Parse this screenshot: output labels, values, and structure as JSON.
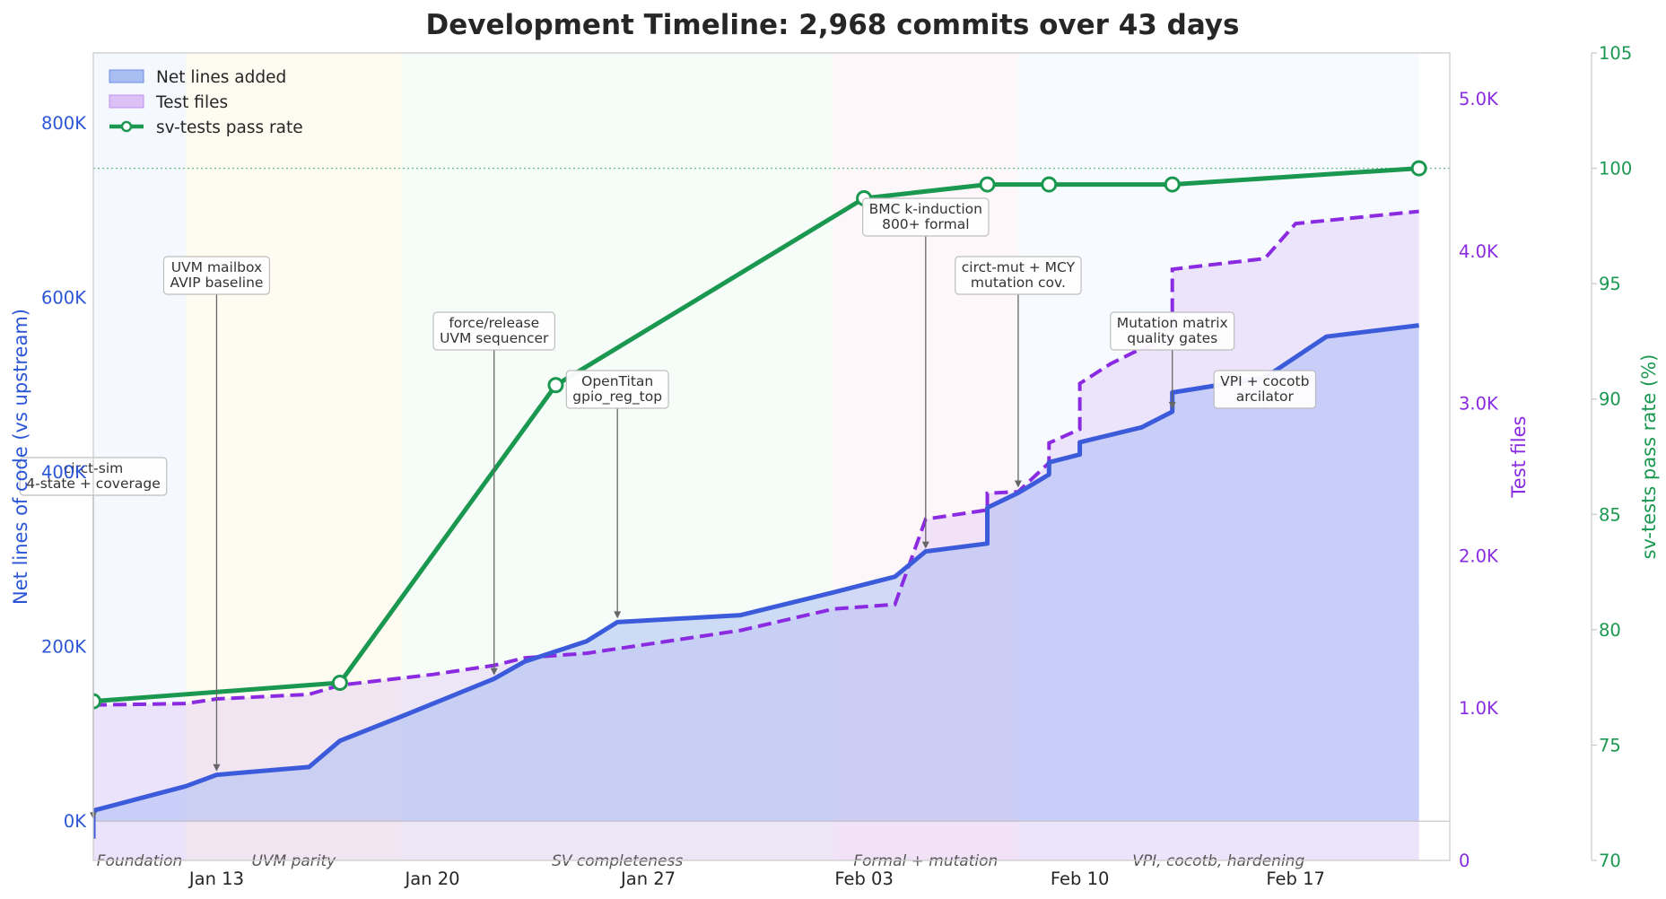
{
  "chart_data": {
    "type": "line",
    "title": "Development Timeline: 2,968 commits over 43 days",
    "x_ticks": [
      "Jan 13",
      "Jan 20",
      "Jan 27",
      "Feb 03",
      "Feb 10",
      "Feb 17"
    ],
    "xlim": [
      "Jan 09",
      "Feb 22"
    ],
    "axes": {
      "left": {
        "label": "Net lines of code (vs upstream)",
        "ylim": [
          -45000,
          880000
        ],
        "ticks": [
          0,
          200000,
          400000,
          600000,
          800000
        ],
        "tick_labels": [
          "0K",
          "200K",
          "400K",
          "600K",
          "800K"
        ],
        "color": "#2a55d6"
      },
      "right1": {
        "label": "Test files",
        "ylim": [
          0,
          5300
        ],
        "ticks": [
          0,
          1000,
          2000,
          3000,
          4000,
          5000
        ],
        "tick_labels": [
          "0",
          "1.0K",
          "2.0K",
          "3.0K",
          "4.0K",
          "5.0K"
        ],
        "color": "#8a2be2"
      },
      "right2": {
        "label": "sv-tests pass rate (%)",
        "ylim": [
          70,
          105
        ],
        "ticks": [
          70,
          75,
          80,
          85,
          90,
          95,
          100,
          105
        ],
        "tick_labels": [
          "70",
          "75",
          "80",
          "85",
          "90",
          "95",
          "100",
          "105"
        ],
        "color": "#1a9850"
      }
    },
    "series": [
      {
        "name": "Net lines added",
        "axis": "left",
        "style": "area+line",
        "color": "#3b5bdb",
        "points": [
          [
            "Jan 09",
            -20000
          ],
          [
            "Jan 09",
            12000
          ],
          [
            "Jan 12",
            40000
          ],
          [
            "Jan 13",
            53000
          ],
          [
            "Jan 16",
            62000
          ],
          [
            "Jan 17",
            92000
          ],
          [
            "Jan 19",
            120000
          ],
          [
            "Jan 22",
            163000
          ],
          [
            "Jan 23",
            183000
          ],
          [
            "Jan 25",
            206000
          ],
          [
            "Jan 26",
            228000
          ],
          [
            "Jan 30",
            236000
          ],
          [
            "Feb 02",
            262000
          ],
          [
            "Feb 04",
            280000
          ],
          [
            "Feb 05",
            309000
          ],
          [
            "Feb 07",
            318000
          ],
          [
            "Feb 07",
            359000
          ],
          [
            "Feb 08",
            376000
          ],
          [
            "Feb 09",
            397000
          ],
          [
            "Feb 09",
            411000
          ],
          [
            "Feb 10",
            420000
          ],
          [
            "Feb 10",
            434000
          ],
          [
            "Feb 12",
            451000
          ],
          [
            "Feb 13",
            469000
          ],
          [
            "Feb 13",
            491000
          ],
          [
            "Feb 16",
            508000
          ],
          [
            "Feb 18",
            555000
          ],
          [
            "Feb 21",
            568000
          ]
        ]
      },
      {
        "name": "Test files",
        "axis": "right1",
        "style": "dashed-area",
        "color": "#8a2be2",
        "points": [
          [
            "Jan 09",
            1020
          ],
          [
            "Jan 12",
            1030
          ],
          [
            "Jan 13",
            1060
          ],
          [
            "Jan 16",
            1090
          ],
          [
            "Jan 17",
            1150
          ],
          [
            "Jan 20",
            1220
          ],
          [
            "Jan 22",
            1280
          ],
          [
            "Jan 23",
            1330
          ],
          [
            "Jan 25",
            1360
          ],
          [
            "Jan 26",
            1390
          ],
          [
            "Jan 30",
            1510
          ],
          [
            "Feb 02",
            1650
          ],
          [
            "Feb 04",
            1680
          ],
          [
            "Feb 05",
            2240
          ],
          [
            "Feb 07",
            2300
          ],
          [
            "Feb 07",
            2410
          ],
          [
            "Feb 08",
            2420
          ],
          [
            "Feb 09",
            2610
          ],
          [
            "Feb 09",
            2740
          ],
          [
            "Feb 10",
            2830
          ],
          [
            "Feb 10",
            3130
          ],
          [
            "Feb 11",
            3260
          ],
          [
            "Feb 12",
            3360
          ],
          [
            "Feb 13",
            3420
          ],
          [
            "Feb 13",
            3880
          ],
          [
            "Feb 16",
            3950
          ],
          [
            "Feb 17",
            4180
          ],
          [
            "Feb 21",
            4260
          ]
        ]
      },
      {
        "name": "sv-tests pass rate",
        "axis": "right2",
        "style": "line+markers",
        "color": "#1a9850",
        "points": [
          [
            "Jan 09",
            76.9
          ],
          [
            "Jan 17",
            77.7
          ],
          [
            "Jan 24",
            90.6
          ],
          [
            "Feb 03",
            98.7
          ],
          [
            "Feb 07",
            99.3
          ],
          [
            "Feb 09",
            99.3
          ],
          [
            "Feb 13",
            99.3
          ],
          [
            "Feb 21",
            100.0
          ]
        ]
      }
    ],
    "reference_line": {
      "axis": "right2",
      "value": 100
    },
    "phases": [
      {
        "label": "Foundation",
        "start": "Jan 09",
        "end": "Jan 12",
        "color": "#dce6fb"
      },
      {
        "label": "UVM parity",
        "start": "Jan 12",
        "end": "Jan 19",
        "color": "#fdf0c8"
      },
      {
        "label": "SV completeness",
        "start": "Jan 19",
        "end": "Feb 02",
        "color": "#e0f5e6"
      },
      {
        "label": "Formal + mutation",
        "start": "Feb 02",
        "end": "Feb 08",
        "color": "#fde3ec"
      },
      {
        "label": "VPI, cocotb, hardening",
        "start": "Feb 08",
        "end": "Feb 21",
        "color": "#e3ecfb"
      }
    ],
    "annotations": [
      {
        "lines": [
          "circt-sim",
          "4-state + coverage"
        ],
        "date": "Jan 09",
        "target_value": 0
      },
      {
        "lines": [
          "UVM mailbox",
          "AVIP baseline"
        ],
        "date": "Jan 13",
        "target_value": 55000
      },
      {
        "lines": [
          "force/release",
          "UVM sequencer"
        ],
        "date": "Jan 22",
        "target_value": 165000
      },
      {
        "lines": [
          "OpenTitan",
          "gpio_reg_top"
        ],
        "date": "Jan 26",
        "target_value": 230000
      },
      {
        "lines": [
          "BMC k-induction",
          "800+ formal"
        ],
        "date": "Feb 05",
        "target_value": 310000
      },
      {
        "lines": [
          "circt-mut + MCY",
          "mutation cov."
        ],
        "date": "Feb 08",
        "target_value": 380000
      },
      {
        "lines": [
          "Mutation matrix",
          "quality gates"
        ],
        "date": "Feb 13",
        "target_value": 470000
      },
      {
        "lines": [
          "VPI + cocotb",
          "arcilator"
        ],
        "date": "Feb 16",
        "target_value": 500000
      }
    ],
    "legend": {
      "position": "top-left",
      "entries": [
        "Net lines added",
        "Test files",
        "sv-tests pass rate"
      ]
    },
    "grid": false
  }
}
